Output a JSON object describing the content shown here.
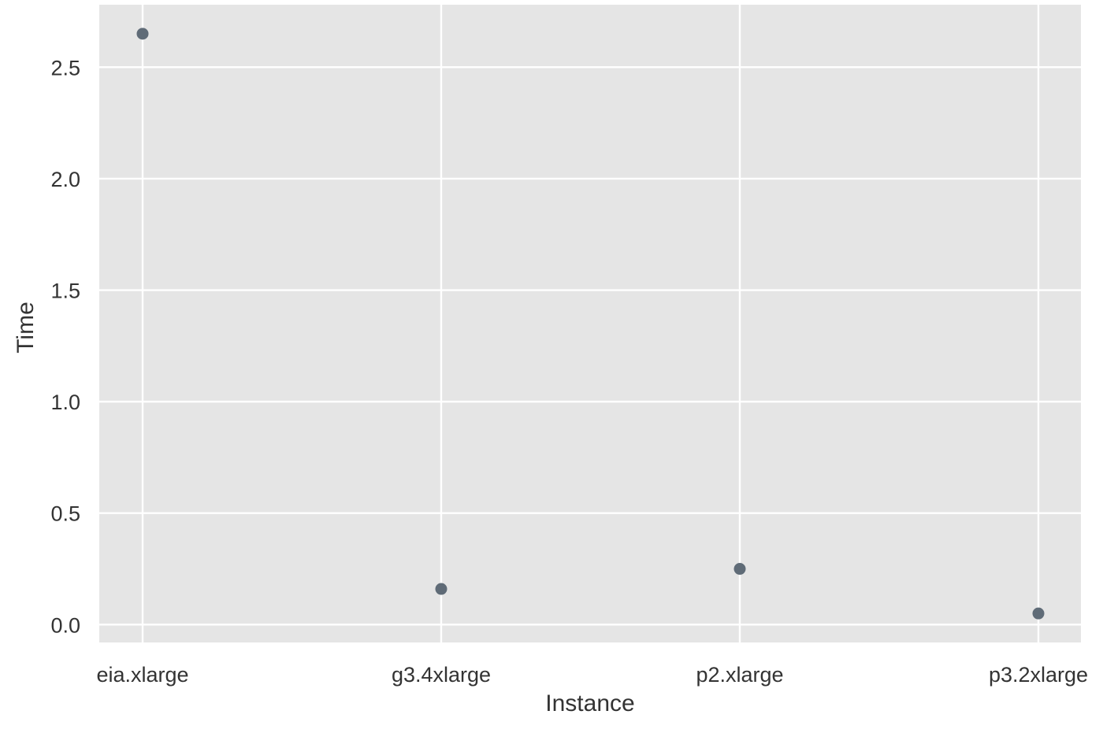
{
  "chart_data": {
    "type": "scatter",
    "categories": [
      "eia.xlarge",
      "g3.4xlarge",
      "p2.xlarge",
      "p3.2xlarge"
    ],
    "values": [
      2.65,
      0.16,
      0.25,
      0.05
    ],
    "xlabel": "Instance",
    "ylabel": "Time",
    "ylim": [
      -0.08,
      2.78
    ],
    "yticks": [
      0.0,
      0.5,
      1.0,
      1.5,
      2.0,
      2.5
    ],
    "ytick_labels": [
      "0.0",
      "0.5",
      "1.0",
      "1.5",
      "2.0",
      "2.5"
    ],
    "grid": true,
    "colors": {
      "plot_background": "#e5e5e5",
      "gridline": "#ffffff",
      "point": "#5f6b77",
      "text": "#333333"
    }
  }
}
